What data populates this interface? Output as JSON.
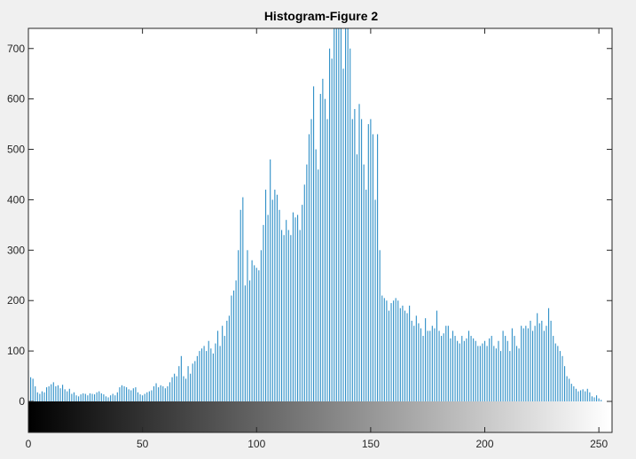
{
  "chart_data": {
    "type": "bar",
    "title": "Histogram-Figure 2",
    "xlabel": "",
    "ylabel": "",
    "xlim": [
      0,
      255
    ],
    "ylim": [
      0,
      740
    ],
    "x_ticks": [
      0,
      50,
      100,
      150,
      200,
      250
    ],
    "x_tick_labels": [
      "0",
      "50",
      "100",
      "150",
      "200",
      "250"
    ],
    "y_ticks": [
      0,
      100,
      200,
      300,
      400,
      500,
      600,
      700
    ],
    "y_tick_labels": [
      "0",
      "100",
      "200",
      "300",
      "400",
      "500",
      "600",
      "700"
    ],
    "grid": false,
    "bar_color": "#2e8fc7",
    "colorbar": "grayscale 0 (black) to 255 (white)",
    "series": [
      {
        "values": [
          62,
          48,
          45,
          30,
          18,
          15,
          20,
          18,
          28,
          30,
          34,
          38,
          30,
          32,
          26,
          33,
          24,
          20,
          25,
          15,
          18,
          12,
          10,
          14,
          16,
          15,
          12,
          16,
          15,
          14,
          18,
          20,
          16,
          14,
          10,
          8,
          12,
          15,
          12,
          18,
          28,
          32,
          30,
          28,
          24,
          22,
          26,
          28,
          18,
          14,
          12,
          15,
          18,
          20,
          22,
          30,
          36,
          28,
          32,
          30,
          26,
          30,
          38,
          48,
          55,
          50,
          70,
          90,
          50,
          45,
          70,
          55,
          75,
          80,
          90,
          100,
          105,
          110,
          100,
          120,
          105,
          95,
          115,
          140,
          110,
          150,
          130,
          160,
          170,
          210,
          220,
          240,
          300,
          380,
          405,
          230,
          300,
          240,
          280,
          270,
          265,
          260,
          300,
          350,
          420,
          370,
          480,
          400,
          420,
          410,
          380,
          340,
          330,
          360,
          340,
          330,
          375,
          365,
          370,
          340,
          390,
          430,
          470,
          530,
          560,
          625,
          500,
          460,
          610,
          640,
          600,
          560,
          700,
          680,
          740,
          740,
          740,
          740,
          660,
          740,
          740,
          700,
          560,
          580,
          490,
          590,
          560,
          470,
          420,
          550,
          560,
          530,
          400,
          530,
          300,
          210,
          205,
          200,
          180,
          195,
          200,
          205,
          200,
          185,
          190,
          180,
          175,
          190,
          160,
          150,
          170,
          155,
          145,
          130,
          165,
          140,
          140,
          150,
          145,
          180,
          140,
          130,
          135,
          150,
          150,
          125,
          140,
          130,
          120,
          115,
          130,
          120,
          125,
          140,
          130,
          125,
          120,
          110,
          110,
          115,
          120,
          110,
          125,
          130,
          110,
          105,
          120,
          100,
          140,
          130,
          120,
          100,
          145,
          130,
          110,
          105,
          150,
          145,
          150,
          145,
          160,
          140,
          150,
          175,
          155,
          160,
          140,
          150,
          185,
          160,
          130,
          115,
          110,
          100,
          90,
          70,
          50,
          45,
          35,
          30,
          25,
          20,
          22,
          24,
          20,
          25,
          18,
          10,
          8,
          12,
          6,
          3,
          0,
          0,
          0,
          0
        ]
      }
    ]
  }
}
